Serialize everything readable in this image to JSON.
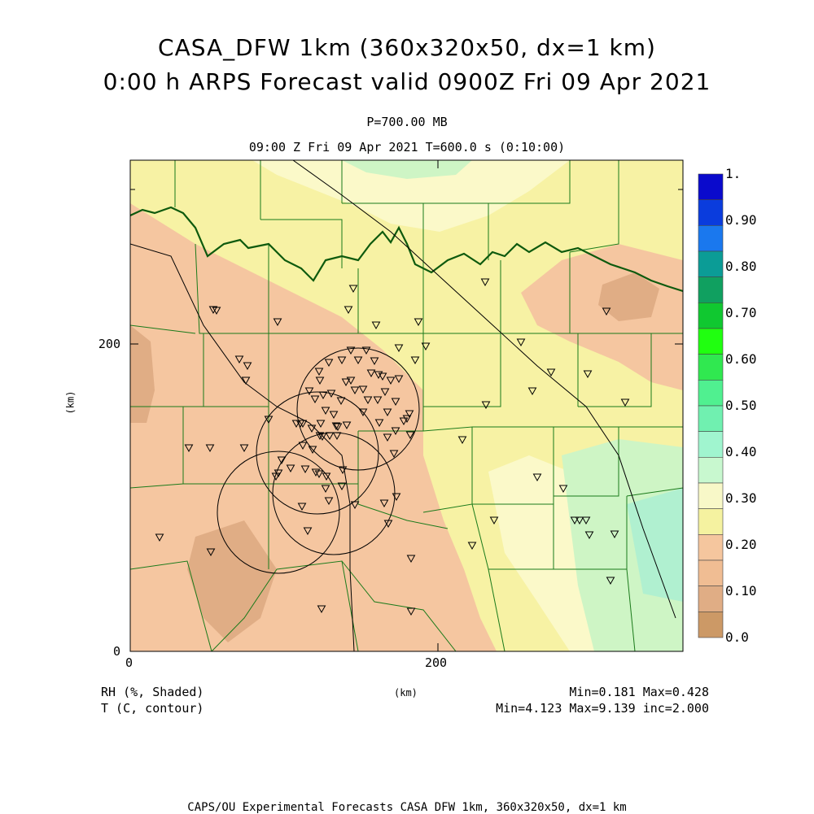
{
  "header": {
    "title_line1": "CASA_DFW 1km (360x320x50, dx=1 km)",
    "title_line2": "0:00 h ARPS Forecast valid 0900Z Fri 09 Apr 2021",
    "pressure_level": "P=700.00 MB",
    "valid_time": "09:00 Z Fri 09 Apr 2021   T=600.0 s (0:10:00)"
  },
  "map": {
    "x_axis_ticks": [
      "0",
      "200"
    ],
    "y_axis_ticks": [
      "0",
      "200"
    ],
    "x_axis_label": "(km)",
    "y_axis_label": "(km)",
    "colors": {
      "rh_0_10": "#cc9966",
      "rh_10_20": "#e0ad85",
      "rh_20_30_bg": "#f5c6a0",
      "rh_30_bg": "#f7f2a4",
      "rh_30_light": "#fbf9c9",
      "rh_40": "#cef5c5",
      "rh_45": "#b0f0d0",
      "county_lines": "#1a7a1a",
      "state_border": "#0e5a0e"
    }
  },
  "colorbar": {
    "labels": [
      "1.",
      "0.90",
      "0.80",
      "0.70",
      "0.60",
      "0.50",
      "0.40",
      "0.30",
      "0.20",
      "0.10",
      "0.0"
    ],
    "colors": [
      "#0a0acc",
      "#0a3cdd",
      "#1a78ee",
      "#0b9c96",
      "#10a060",
      "#10c830",
      "#20ff10",
      "#30e850",
      "#50f090",
      "#70f0b0",
      "#a0f5cf",
      "#c8f8cf",
      "#f8f8c8",
      "#f5f2a0",
      "#f5c69e",
      "#f0bd93",
      "#e0ad85",
      "#cc9966"
    ]
  },
  "footer": {
    "field1_name": "RH (%, Shaded)",
    "field2_name": "T (C, contour)",
    "units": "(km)",
    "field1_range": "Min=0.181 Max=0.428",
    "field2_range": "Min=4.123 Max=9.139 inc=2.000",
    "credit": "CAPS/OU Experimental Forecasts  CASA DFW 1km, 360x320x50, dx=1 km"
  }
}
